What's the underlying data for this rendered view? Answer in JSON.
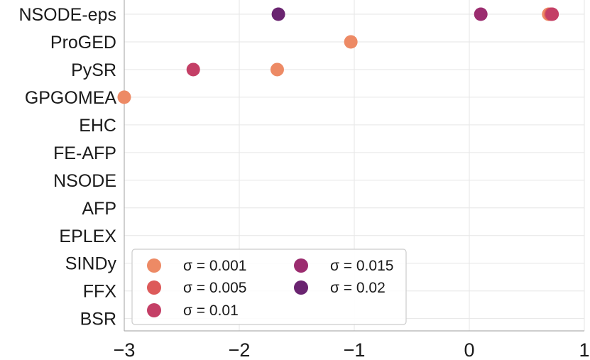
{
  "chart_data": {
    "type": "scatter",
    "categories": [
      "NSODE-eps",
      "ProGED",
      "PySR",
      "GPGOMEA",
      "EHC",
      "FE-AFP",
      "NSODE",
      "AFP",
      "EPLEX",
      "SINDy",
      "FFX",
      "BSR"
    ],
    "xlim": [
      -3,
      1
    ],
    "xticks": [
      -3,
      -2,
      -1,
      0,
      1
    ],
    "xtick_labels": [
      "−3",
      "−2",
      "−1",
      "0",
      "1"
    ],
    "grid": true,
    "legend_position": "lower-left",
    "legend_columns": 2,
    "series": [
      {
        "name": "σ = 0.001",
        "color": "#ed8a65",
        "points": [
          {
            "y": "NSODE-eps",
            "x": 0.69
          },
          {
            "y": "ProGED",
            "x": -1.03
          },
          {
            "y": "PySR",
            "x": -1.67
          },
          {
            "y": "GPGOMEA",
            "x": -3.0
          }
        ]
      },
      {
        "name": "σ = 0.005",
        "color": "#dd5a5a",
        "points": [
          {
            "y": "NSODE-eps",
            "x": 0.71
          }
        ]
      },
      {
        "name": "σ = 0.01",
        "color": "#c43f66",
        "points": [
          {
            "y": "NSODE-eps",
            "x": 0.72
          },
          {
            "y": "PySR",
            "x": -2.4
          }
        ]
      },
      {
        "name": "σ = 0.015",
        "color": "#9b2c6f",
        "points": [
          {
            "y": "NSODE-eps",
            "x": 0.1
          }
        ]
      },
      {
        "name": "σ = 0.02",
        "color": "#6a2470",
        "points": [
          {
            "y": "NSODE-eps",
            "x": -1.66
          }
        ]
      }
    ]
  }
}
